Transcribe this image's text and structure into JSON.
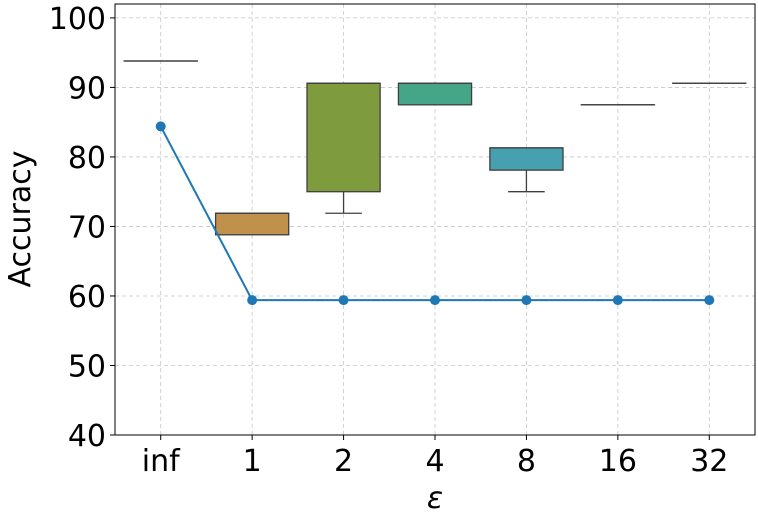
{
  "chart_data": {
    "type": "box+line",
    "title": "",
    "xlabel": "ε",
    "ylabel": "Accuracy",
    "ylim": [
      40,
      102
    ],
    "yticks": [
      40,
      50,
      60,
      70,
      80,
      90,
      100
    ],
    "grid": true,
    "categories": [
      "inf",
      "1",
      "2",
      "4",
      "8",
      "16",
      "32"
    ],
    "boxes": [
      {
        "category": "inf",
        "whislo": 93.8,
        "q1": 93.8,
        "med": 93.8,
        "q3": 93.8,
        "whishi": 93.8,
        "color": "#3b6fb0"
      },
      {
        "category": "1",
        "whislo": 68.8,
        "q1": 68.8,
        "med": 71.9,
        "q3": 71.9,
        "whishi": 71.9,
        "color": "#c0914a"
      },
      {
        "category": "2",
        "whislo": 71.9,
        "q1": 75.0,
        "med": 90.6,
        "q3": 90.6,
        "whishi": 90.6,
        "color": "#7e9c3e"
      },
      {
        "category": "4",
        "whislo": 87.5,
        "q1": 87.5,
        "med": 90.6,
        "q3": 90.6,
        "whishi": 90.6,
        "color": "#45a687"
      },
      {
        "category": "8",
        "whislo": 75.0,
        "q1": 78.1,
        "med": 81.3,
        "q3": 81.3,
        "whishi": 81.3,
        "color": "#46a0b0"
      },
      {
        "category": "16",
        "whislo": 87.5,
        "q1": 87.5,
        "med": 87.5,
        "q3": 87.5,
        "whishi": 87.5,
        "color": "#4e8fc4"
      },
      {
        "category": "32",
        "whislo": 90.6,
        "q1": 90.6,
        "med": 90.6,
        "q3": 90.6,
        "whishi": 90.6,
        "color": "#8a7cc4"
      }
    ],
    "line": {
      "color": "#1f77b4",
      "values": [
        84.4,
        59.4,
        59.4,
        59.4,
        59.4,
        59.4,
        59.4
      ]
    }
  }
}
